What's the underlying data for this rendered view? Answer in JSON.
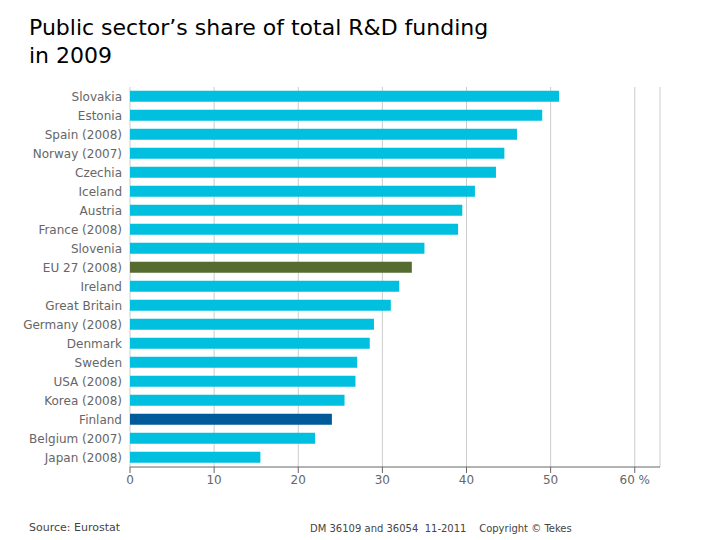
{
  "chart_data": {
    "type": "bar",
    "orientation": "horizontal",
    "title": "Public sector’s share of total R&D funding\nin 2009",
    "source": "Source: Eurostat",
    "footer": "DM 36109 and 36054  11-2011    Copyright © Tekes",
    "categories": [
      "Slovakia",
      "Estonia",
      "Spain (2008)",
      "Norway (2007)",
      "Czechia",
      "Iceland",
      "Austria",
      "France (2008)",
      "Slovenia",
      "EU 27 (2008)",
      "Ireland",
      "Great Britain",
      "Germany (2008)",
      "Denmark",
      "Sweden",
      "USA (2008)",
      "Korea (2008)",
      "Finland",
      "Belgium (2007)",
      "Japan (2008)"
    ],
    "values": [
      51,
      49,
      46,
      44.5,
      43.5,
      41,
      39.5,
      39,
      35,
      33.5,
      32,
      31,
      29,
      28.5,
      27,
      26.8,
      25.5,
      24,
      22,
      15.5
    ],
    "colors": [
      "#00BFDF",
      "#00BFDF",
      "#00BFDF",
      "#00BFDF",
      "#00BFDF",
      "#00BFDF",
      "#00BFDF",
      "#00BFDF",
      "#00BFDF",
      "#556B2F",
      "#00BFDF",
      "#00BFDF",
      "#00BFDF",
      "#00BFDF",
      "#00BFDF",
      "#00BFDF",
      "#00BFDF",
      "#005B9A",
      "#00BFDF",
      "#00BFDF"
    ],
    "xlim": [
      0,
      63
    ],
    "xticks": [
      0,
      10,
      20,
      30,
      40,
      50,
      {
        "value": 60,
        "label": "60 %"
      }
    ],
    "grid": true
  }
}
